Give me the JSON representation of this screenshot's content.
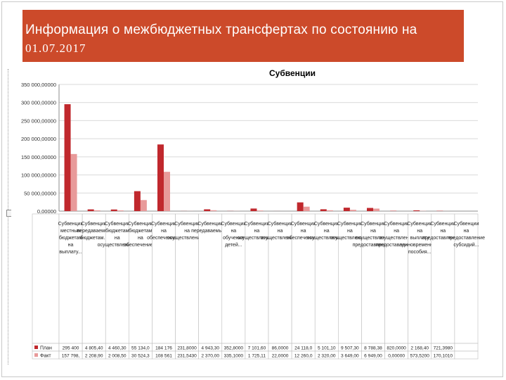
{
  "header": {
    "title": "Информация о межбюджетных трансфертах по состоянию на",
    "date": "01.07.2017"
  },
  "colors": {
    "header_bg": "#cc4a2a",
    "plan": "#c0282d",
    "fact": "#e89a9a"
  },
  "chart_data": {
    "type": "bar",
    "title": "Субвенции",
    "xlabel": "",
    "ylabel": "",
    "ylim": [
      0,
      350000
    ],
    "yticks": [
      "0,00000",
      "50 000,00000",
      "100 000,00000",
      "150 000,00000",
      "200 000,00000",
      "250 000,00000",
      "300 000,00000",
      "350 000,00000"
    ],
    "grid": true,
    "legend": "table-left",
    "categories": [
      "Субвенции местным бюджетам на выплату...",
      "Субвенции передаваемые бюджетам...",
      "Субвенции бюджетам на осуществление...",
      "Субвенции бюджетам на обеспечение...",
      "Субвенции на обеспечение...",
      "Субвенции на осуществление...",
      "Субвенции передаваемые...",
      "Субвенции на обучение детей...",
      "Субвенции на осуществление...",
      "Субвенции на осуществление...",
      "Субвенции на обеспечение...",
      "Субвенции на осуществление...",
      "Субвенции на осуществление...",
      "Субвенции на осуществление предоставления...",
      "Субвенции на осуществление предоставления...",
      "Субвенции на выплату единовременного пособия...",
      "Субвенции на предоставление...",
      "Субвенции на предоставление субсидий..."
    ],
    "series": [
      {
        "name": "План",
        "value_labels": [
          "295 400",
          "4 805,40",
          "4 460,30",
          "55 134,0",
          "184 176",
          "231,8000",
          "4 943,30",
          "352,8000",
          "7 101,60",
          "86,0000",
          "24 118,0",
          "5 101,10",
          "9 507,30",
          "8 788,38",
          "820,0000",
          "2 168,40",
          "721,3980",
          ""
        ],
        "values": [
          295400,
          4805.4,
          4460.3,
          55134,
          184176,
          231.8,
          4943.3,
          352.8,
          7101.6,
          86,
          24118,
          5101.1,
          9507.3,
          8788.38,
          820,
          2168.4,
          721.398,
          0
        ]
      },
      {
        "name": "Факт",
        "value_labels": [
          "157 798,",
          "2 208,90",
          "2 008,50",
          "30 524,3",
          "108 561",
          "231,5430",
          "2 370,00",
          "335,1000",
          "1 725,11",
          "22,0000",
          "12 260,0",
          "2 320,00",
          "3 649,00",
          "6 949,00",
          "0,00000",
          "573,5200",
          "170,1010",
          ""
        ],
        "values": [
          157798,
          2208.9,
          2008.5,
          30524.3,
          108561,
          231.543,
          2370,
          335.1,
          1725.11,
          22,
          12260,
          2320,
          3649,
          6949,
          0,
          573.52,
          170.101,
          0
        ]
      }
    ]
  }
}
